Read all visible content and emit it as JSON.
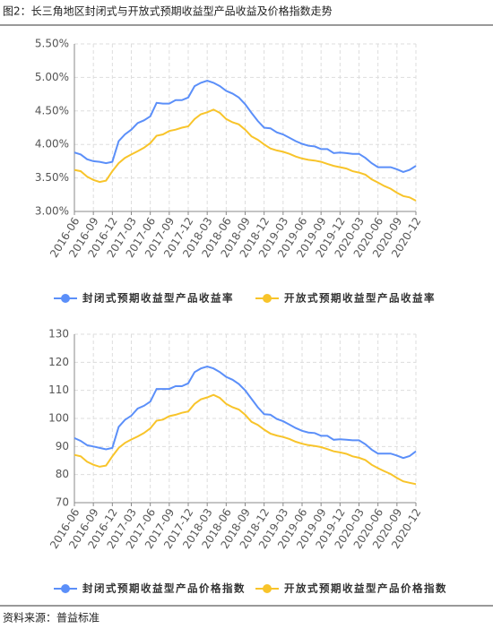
{
  "header": {
    "title": "图2：长三角地区封闭式与开放式预期收益型产品收益及价格指数走势"
  },
  "source": "资料来源：普益标准",
  "chart_data": [
    {
      "type": "line",
      "categories": [
        "2016-06",
        null,
        null,
        "2016-09",
        null,
        null,
        "2016-12",
        null,
        null,
        "2017-03",
        null,
        null,
        "2017-06",
        null,
        null,
        "2017-09",
        null,
        null,
        "2017-12",
        null,
        null,
        "2018-03",
        null,
        null,
        "2018-06",
        null,
        null,
        "2018-09",
        null,
        null,
        "2018-12",
        null,
        null,
        "2019-03",
        null,
        null,
        "2019-06",
        null,
        null,
        "2019-09",
        null,
        null,
        "2019-12",
        null,
        null,
        "2020-03",
        null,
        null,
        "2020-06",
        null,
        null,
        "2020-09",
        null,
        null,
        "2020-12"
      ],
      "series": [
        {
          "name": "封闭式预期收益型产品收益率",
          "color": "#5b8ff9",
          "values": [
            3.88,
            3.85,
            3.78,
            3.75,
            3.74,
            3.72,
            3.74,
            4.05,
            4.15,
            4.22,
            4.32,
            4.36,
            4.42,
            4.62,
            4.61,
            4.61,
            4.66,
            4.66,
            4.7,
            4.87,
            4.92,
            4.95,
            4.92,
            4.87,
            4.8,
            4.76,
            4.7,
            4.6,
            4.47,
            4.35,
            4.25,
            4.24,
            4.18,
            4.15,
            4.1,
            4.05,
            4.01,
            3.98,
            3.97,
            3.93,
            3.93,
            3.87,
            3.88,
            3.87,
            3.86,
            3.86,
            3.8,
            3.72,
            3.66,
            3.66,
            3.66,
            3.63,
            3.59,
            3.62,
            3.68
          ]
        },
        {
          "name": "开放式预期收益型产品收益率",
          "color": "#f8c42a",
          "values": [
            3.62,
            3.6,
            3.52,
            3.47,
            3.44,
            3.46,
            3.6,
            3.72,
            3.8,
            3.85,
            3.9,
            3.95,
            4.02,
            4.13,
            4.15,
            4.2,
            4.22,
            4.25,
            4.27,
            4.38,
            4.45,
            4.48,
            4.52,
            4.47,
            4.38,
            4.33,
            4.3,
            4.22,
            4.12,
            4.07,
            4.0,
            3.94,
            3.91,
            3.89,
            3.86,
            3.82,
            3.79,
            3.77,
            3.76,
            3.74,
            3.71,
            3.68,
            3.66,
            3.64,
            3.6,
            3.58,
            3.55,
            3.48,
            3.43,
            3.38,
            3.34,
            3.28,
            3.23,
            3.21,
            3.16
          ]
        }
      ],
      "ylim": [
        3,
        5.5
      ],
      "yticks": [
        {
          "value": 3,
          "label": "3.00%"
        },
        {
          "value": 3.5,
          "label": "3.50%"
        },
        {
          "value": 4,
          "label": "4.00%"
        },
        {
          "value": 4.5,
          "label": "4.50%"
        },
        {
          "value": 5,
          "label": "5.00%"
        },
        {
          "value": 5.5,
          "label": "5.50%"
        }
      ],
      "grid": true,
      "legend": "bottom"
    },
    {
      "type": "line",
      "categories": [
        "2016-06",
        null,
        null,
        "2016-09",
        null,
        null,
        "2016-12",
        null,
        null,
        "2017-03",
        null,
        null,
        "2017-06",
        null,
        null,
        "2017-09",
        null,
        null,
        "2017-12",
        null,
        null,
        "2018-03",
        null,
        null,
        "2018-06",
        null,
        null,
        "2018-09",
        null,
        null,
        "2018-12",
        null,
        null,
        "2019-03",
        null,
        null,
        "2019-06",
        null,
        null,
        "2019-09",
        null,
        null,
        "2019-12",
        null,
        null,
        "2020-03",
        null,
        null,
        "2020-06",
        null,
        null,
        "2020-09",
        null,
        null,
        "2020-12"
      ],
      "series": [
        {
          "name": "封闭式预期收益型产品价格指数",
          "color": "#5b8ff9",
          "values": [
            93,
            92,
            90.5,
            90,
            89.5,
            89,
            89.5,
            97,
            99.5,
            101,
            103.5,
            104.5,
            106,
            110.5,
            110.5,
            110.5,
            111.5,
            111.5,
            112.5,
            116.5,
            117.8,
            118.5,
            117.8,
            116.5,
            114.8,
            113.8,
            112.3,
            110,
            107,
            104,
            101.5,
            101.3,
            99.8,
            99,
            97.8,
            96.6,
            95.6,
            95,
            94.8,
            93.8,
            93.8,
            92.4,
            92.6,
            92.4,
            92.2,
            92.2,
            90.8,
            88.9,
            87.5,
            87.5,
            87.5,
            86.8,
            85.9,
            86.6,
            88.3
          ]
        },
        {
          "name": "开放式预期收益型产品价格指数",
          "color": "#f8c42a",
          "values": [
            87,
            86.5,
            84.6,
            83.5,
            82.8,
            83.2,
            86.5,
            89.5,
            91.3,
            92.5,
            93.6,
            94.8,
            96.5,
            99.2,
            99.6,
            100.8,
            101.3,
            102,
            102.5,
            105.2,
            106.8,
            107.5,
            108.4,
            107.3,
            105.2,
            104,
            103.2,
            101.3,
            98.8,
            97.7,
            96,
            94.6,
            93.9,
            93.4,
            92.7,
            91.7,
            91,
            90.5,
            90.2,
            89.8,
            89.1,
            88.3,
            87.9,
            87.4,
            86.5,
            86,
            85.2,
            83.5,
            82.3,
            81.2,
            80.2,
            78.8,
            77.6,
            77.1,
            76.6
          ]
        }
      ],
      "ylim": [
        70,
        130
      ],
      "yticks": [
        70,
        80,
        90,
        100,
        110,
        120,
        130
      ],
      "grid": true,
      "legend": "bottom"
    }
  ]
}
